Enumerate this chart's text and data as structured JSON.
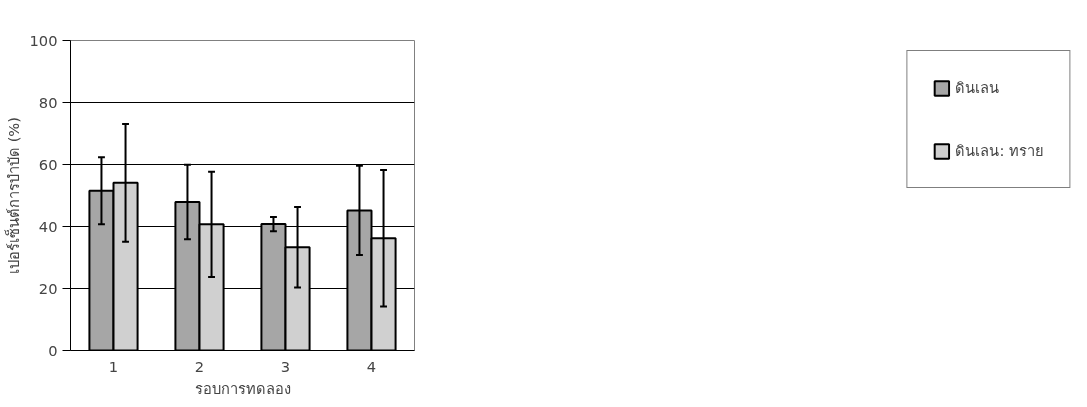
{
  "chart_data": {
    "type": "bar",
    "xlabel": "รอบการทดลอง",
    "ylabel": "เปอร์เซ็นต์การบำบัด (%)",
    "categories": [
      "1",
      "2",
      "3",
      "4"
    ],
    "series": [
      {
        "name": "ดินเลน",
        "color": "#a6a6a6",
        "values": [
          51.5,
          47.9,
          40.8,
          45.2
        ],
        "errors": [
          10.8,
          12,
          2.3,
          14.4
        ]
      },
      {
        "name": "ดินเลน: ทราย",
        "color": "#d0d0d0",
        "values": [
          54.1,
          40.7,
          33.3,
          36.2
        ],
        "errors": [
          19,
          17,
          13,
          22
        ]
      }
    ],
    "ylim": [
      0,
      100
    ],
    "yticks": [
      0,
      20,
      40,
      60,
      80,
      100
    ],
    "grid": "y",
    "legend": "right"
  }
}
